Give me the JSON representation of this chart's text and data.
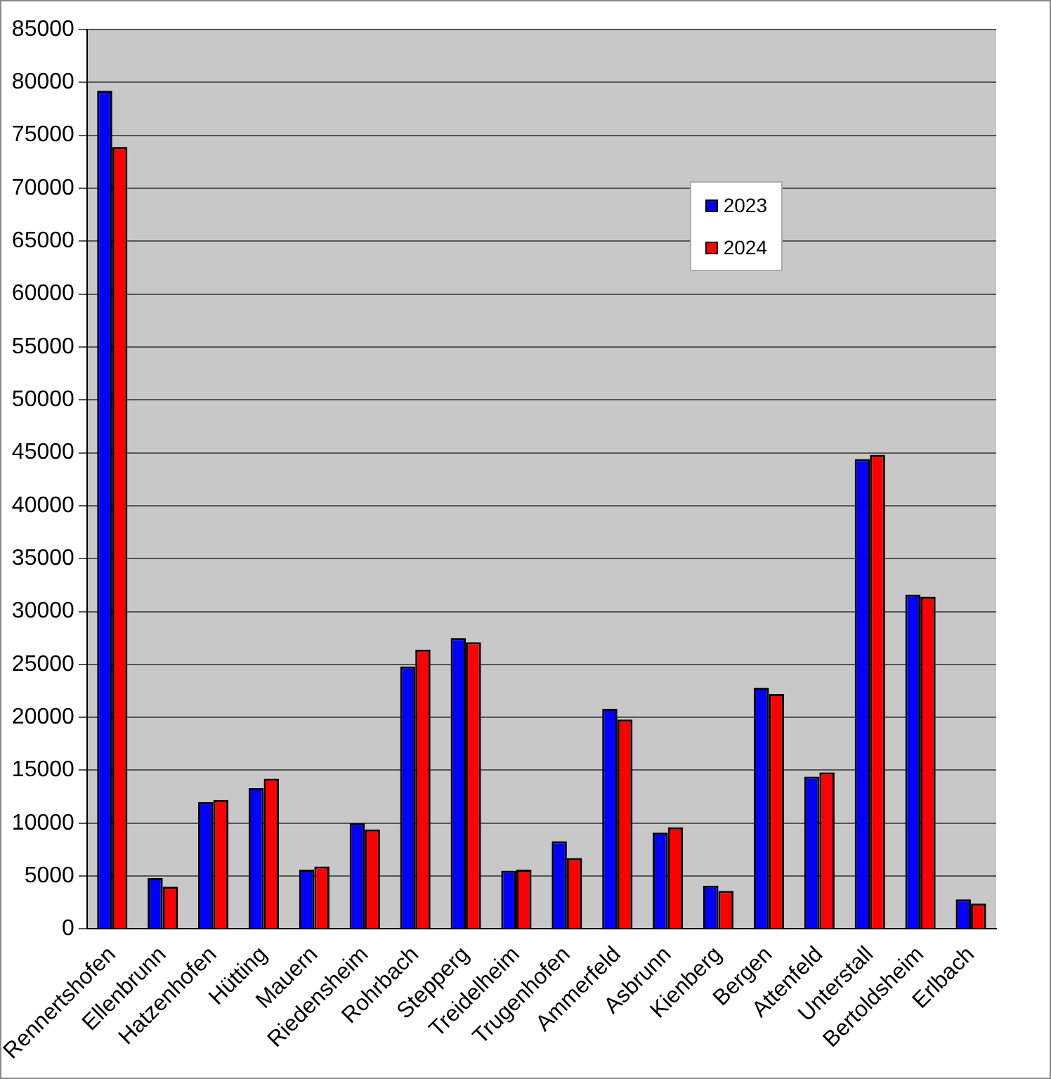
{
  "chart_data": {
    "type": "bar",
    "categories": [
      "Rennertshofen",
      "Ellenbrunn",
      "Hatzenhofen",
      "Hütting",
      "Mauern",
      "Riedensheim",
      "Rohrbach",
      "Stepperg",
      "Treidelheim",
      "Trugenhofen",
      "Ammerfeld",
      "Asbrunn",
      "Kienberg",
      "Bergen",
      "Attenfeld",
      "Unterstall",
      "Bertoldsheim",
      "Erlbach"
    ],
    "series": [
      {
        "name": "2023",
        "color": "#0000ff",
        "values": [
          79200,
          4800,
          12000,
          13300,
          5600,
          10000,
          24800,
          27500,
          5500,
          8300,
          20800,
          9100,
          4100,
          22800,
          14400,
          44400,
          31600,
          2800
        ]
      },
      {
        "name": "2024",
        "color": "#ff0000",
        "values": [
          73900,
          4000,
          12200,
          14200,
          5900,
          9400,
          26400,
          27100,
          5600,
          6700,
          19800,
          9600,
          3600,
          22200,
          14800,
          44800,
          31400,
          2400
        ]
      }
    ],
    "ylim": [
      0,
      85000
    ],
    "yticks": [
      0,
      5000,
      10000,
      15000,
      20000,
      25000,
      30000,
      35000,
      40000,
      45000,
      50000,
      55000,
      60000,
      65000,
      70000,
      75000,
      80000,
      85000
    ],
    "grid": "y",
    "legend": "top right"
  }
}
